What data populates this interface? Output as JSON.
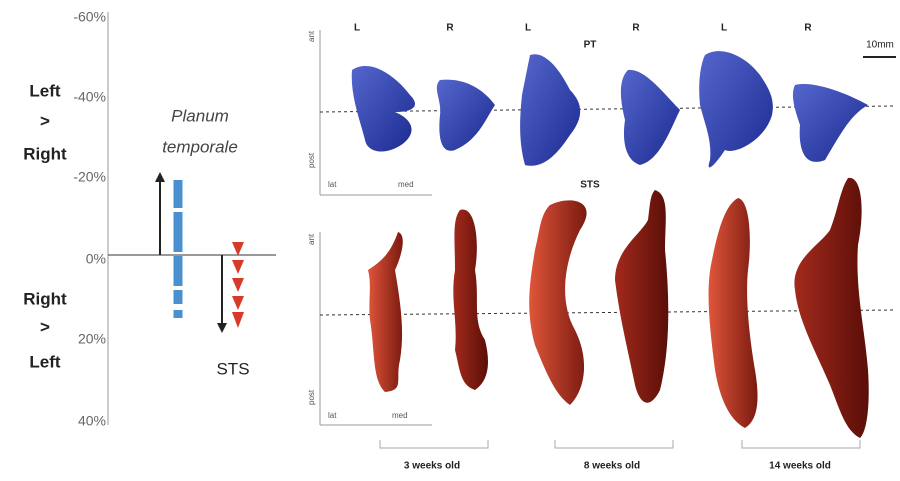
{
  "left_panel": {
    "axis_ticks": [
      "-60%",
      "-40%",
      "-20%",
      "0%",
      "20%",
      "40%"
    ],
    "top_label": [
      "Left",
      ">",
      "Right"
    ],
    "bottom_label": [
      "Right",
      ">",
      "Left"
    ],
    "pt_label": [
      "Planum",
      "temporale"
    ],
    "sts_label": "STS"
  },
  "right_panel": {
    "hemispheres": [
      "L",
      "R",
      "L",
      "R",
      "L",
      "R"
    ],
    "pt_title": "PT",
    "sts_title": "STS",
    "scale": "10mm",
    "pt_axes": [
      "ant",
      "post",
      "lat",
      "med"
    ],
    "sts_axes": [
      "ant",
      "post",
      "lat",
      "med"
    ],
    "ages": [
      "3 weeks old",
      "8 weeks old",
      "14 weeks old"
    ]
  }
}
